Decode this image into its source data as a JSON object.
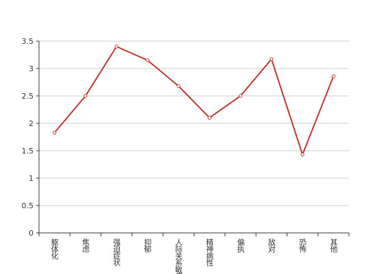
{
  "chart_data": {
    "type": "line",
    "categories": [
      "躯体化",
      "焦虑",
      "强迫症状",
      "抑郁",
      "人际关系敏感",
      "精神病性",
      "偏执",
      "敌对",
      "恐怖",
      "其他"
    ],
    "values": [
      1.83,
      2.5,
      3.4,
      3.15,
      2.68,
      2.1,
      2.5,
      3.17,
      1.43,
      2.86
    ],
    "color": "#c23531",
    "ylim": [
      0,
      3.5
    ],
    "yticks": [
      0,
      0.5,
      1,
      1.5,
      2,
      2.5,
      3,
      3.5
    ],
    "grid": true
  }
}
